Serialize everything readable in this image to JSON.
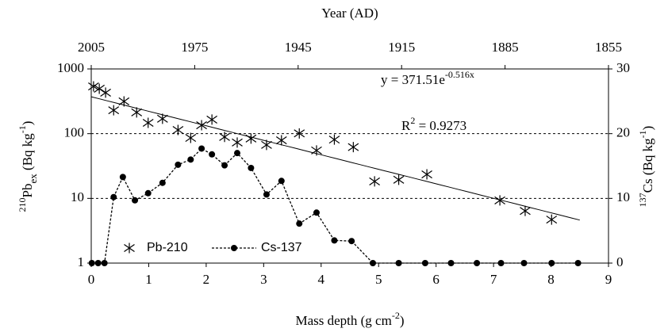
{
  "chart_data": {
    "type": "scatter",
    "x_label_parts": [
      {
        "text": "Mass depth (g cm",
        "style": "normal"
      },
      {
        "text": "-2",
        "style": "super"
      },
      {
        "text": ")",
        "style": "normal"
      }
    ],
    "x2_label": "Year (AD)",
    "y_label_parts": [
      {
        "text": "210",
        "style": "super"
      },
      {
        "text": "Pb",
        "style": "normal"
      },
      {
        "text": "ex",
        "style": "sub"
      },
      {
        "text": " (Bq kg",
        "style": "normal"
      },
      {
        "text": "-1",
        "style": "super"
      },
      {
        "text": ")",
        "style": "normal"
      }
    ],
    "y2_label_parts": [
      {
        "text": "137",
        "style": "super"
      },
      {
        "text": "Cs (Bq kg",
        "style": "normal"
      },
      {
        "text": "-1",
        "style": "super"
      },
      {
        "text": ")",
        "style": "normal"
      }
    ],
    "xlim": [
      0,
      9
    ],
    "xticks": [
      0,
      1,
      2,
      3,
      4,
      5,
      6,
      7,
      8,
      9
    ],
    "x2lim": [
      2005,
      1855
    ],
    "x2ticks": [
      2005,
      1975,
      1945,
      1915,
      1885,
      1855
    ],
    "ylim": [
      1,
      1000
    ],
    "yticks": [
      1,
      10,
      100,
      1000
    ],
    "log_y": true,
    "y2lim": [
      0,
      30
    ],
    "y2ticks": [
      0,
      10,
      20,
      30
    ],
    "grid": true,
    "legend": "lower left",
    "series": [
      {
        "name": "Pb-210",
        "type": "scatter",
        "color": "#000000",
        "x": [
          0.04,
          0.14,
          0.25,
          0.39,
          0.57,
          0.79,
          0.99,
          1.24,
          1.51,
          1.73,
          1.92,
          2.1,
          2.32,
          2.54,
          2.78,
          3.05,
          3.31,
          3.62,
          3.92,
          4.23,
          4.56,
          4.93,
          5.35,
          5.84,
          7.11,
          7.55,
          8.01
        ],
        "values": [
          537,
          495,
          430,
          230,
          315,
          213,
          147,
          170,
          114,
          86,
          135,
          165,
          89,
          73,
          84,
          67,
          79,
          101,
          55,
          81,
          62,
          18.3,
          19.4,
          23.5,
          9.3,
          6.4,
          4.7
        ]
      },
      {
        "name": "Cs-137",
        "type": "line",
        "axis": "y2",
        "color": "#000000",
        "x": [
          0.01,
          0.12,
          0.23,
          0.39,
          0.55,
          0.76,
          0.99,
          1.24,
          1.51,
          1.73,
          1.92,
          2.1,
          2.32,
          2.54,
          2.78,
          3.05,
          3.31,
          3.62,
          3.92,
          4.23,
          4.53,
          4.9,
          5.35,
          5.81,
          6.26,
          6.71,
          7.13,
          7.53,
          8.01,
          8.47
        ],
        "values": [
          0,
          0,
          0,
          10.2,
          13.3,
          9.7,
          10.8,
          12.4,
          15.2,
          16.0,
          17.7,
          16.8,
          15.1,
          17.0,
          14.7,
          10.6,
          12.7,
          6.1,
          7.8,
          3.5,
          3.4,
          0,
          0,
          0,
          0,
          0,
          0,
          0,
          0,
          0
        ]
      }
    ],
    "fit": {
      "a": 371.51,
      "b": -0.516,
      "x_range": [
        0,
        8.5
      ],
      "equation": "y = 371.51e",
      "equation_exponent": "-0.516x",
      "r2_text": "R",
      "r2_sup": "2",
      "r2_value": " = 0.9273"
    }
  }
}
